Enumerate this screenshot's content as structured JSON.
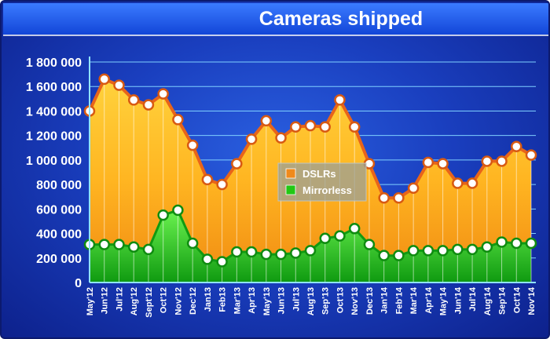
{
  "chart_data": {
    "type": "area",
    "title": "Cameras shipped",
    "categories": [
      "May'12",
      "Jun'12",
      "Jul'12",
      "Aug'12",
      "Sept'12",
      "Oct'12",
      "Nov'12",
      "Dec'12",
      "Jan13",
      "Feb13",
      "Mar'13",
      "Apr'13",
      "May'13",
      "Jun'13",
      "Jul'13",
      "Aug'13",
      "Sep'13",
      "Oct'13",
      "Nov'13",
      "Dec'13",
      "Jan'14",
      "Feb'14",
      "Mar'14",
      "Apr'14",
      "May'14",
      "Jun'14",
      "Jul'14",
      "Aug'14",
      "Sep'14",
      "Oct'14",
      "Nov'14"
    ],
    "series": [
      {
        "name": "DSLRs",
        "color": "#f08a1c",
        "values": [
          1400000,
          1660000,
          1610000,
          1490000,
          1450000,
          1540000,
          1330000,
          1120000,
          840000,
          800000,
          970000,
          1170000,
          1320000,
          1180000,
          1270000,
          1280000,
          1270000,
          1490000,
          1270000,
          970000,
          690000,
          690000,
          770000,
          980000,
          970000,
          810000,
          810000,
          990000,
          990000,
          1110000,
          1040000
        ]
      },
      {
        "name": "Mirrorless",
        "color": "#22c814",
        "values": [
          310000,
          310000,
          310000,
          290000,
          270000,
          550000,
          590000,
          320000,
          190000,
          170000,
          250000,
          250000,
          230000,
          230000,
          240000,
          260000,
          360000,
          380000,
          440000,
          310000,
          220000,
          220000,
          260000,
          260000,
          260000,
          270000,
          270000,
          290000,
          330000,
          320000,
          320000
        ]
      }
    ],
    "yticks": [
      "1 800 000",
      "1 600 000",
      "1 400 000",
      "1 200 000",
      "1 000 000",
      "800 000",
      "600 000",
      "400 000",
      "200 000",
      "0"
    ],
    "ylim": [
      0,
      1800000
    ],
    "grid": true,
    "stacked": false,
    "legend_position": "center"
  }
}
